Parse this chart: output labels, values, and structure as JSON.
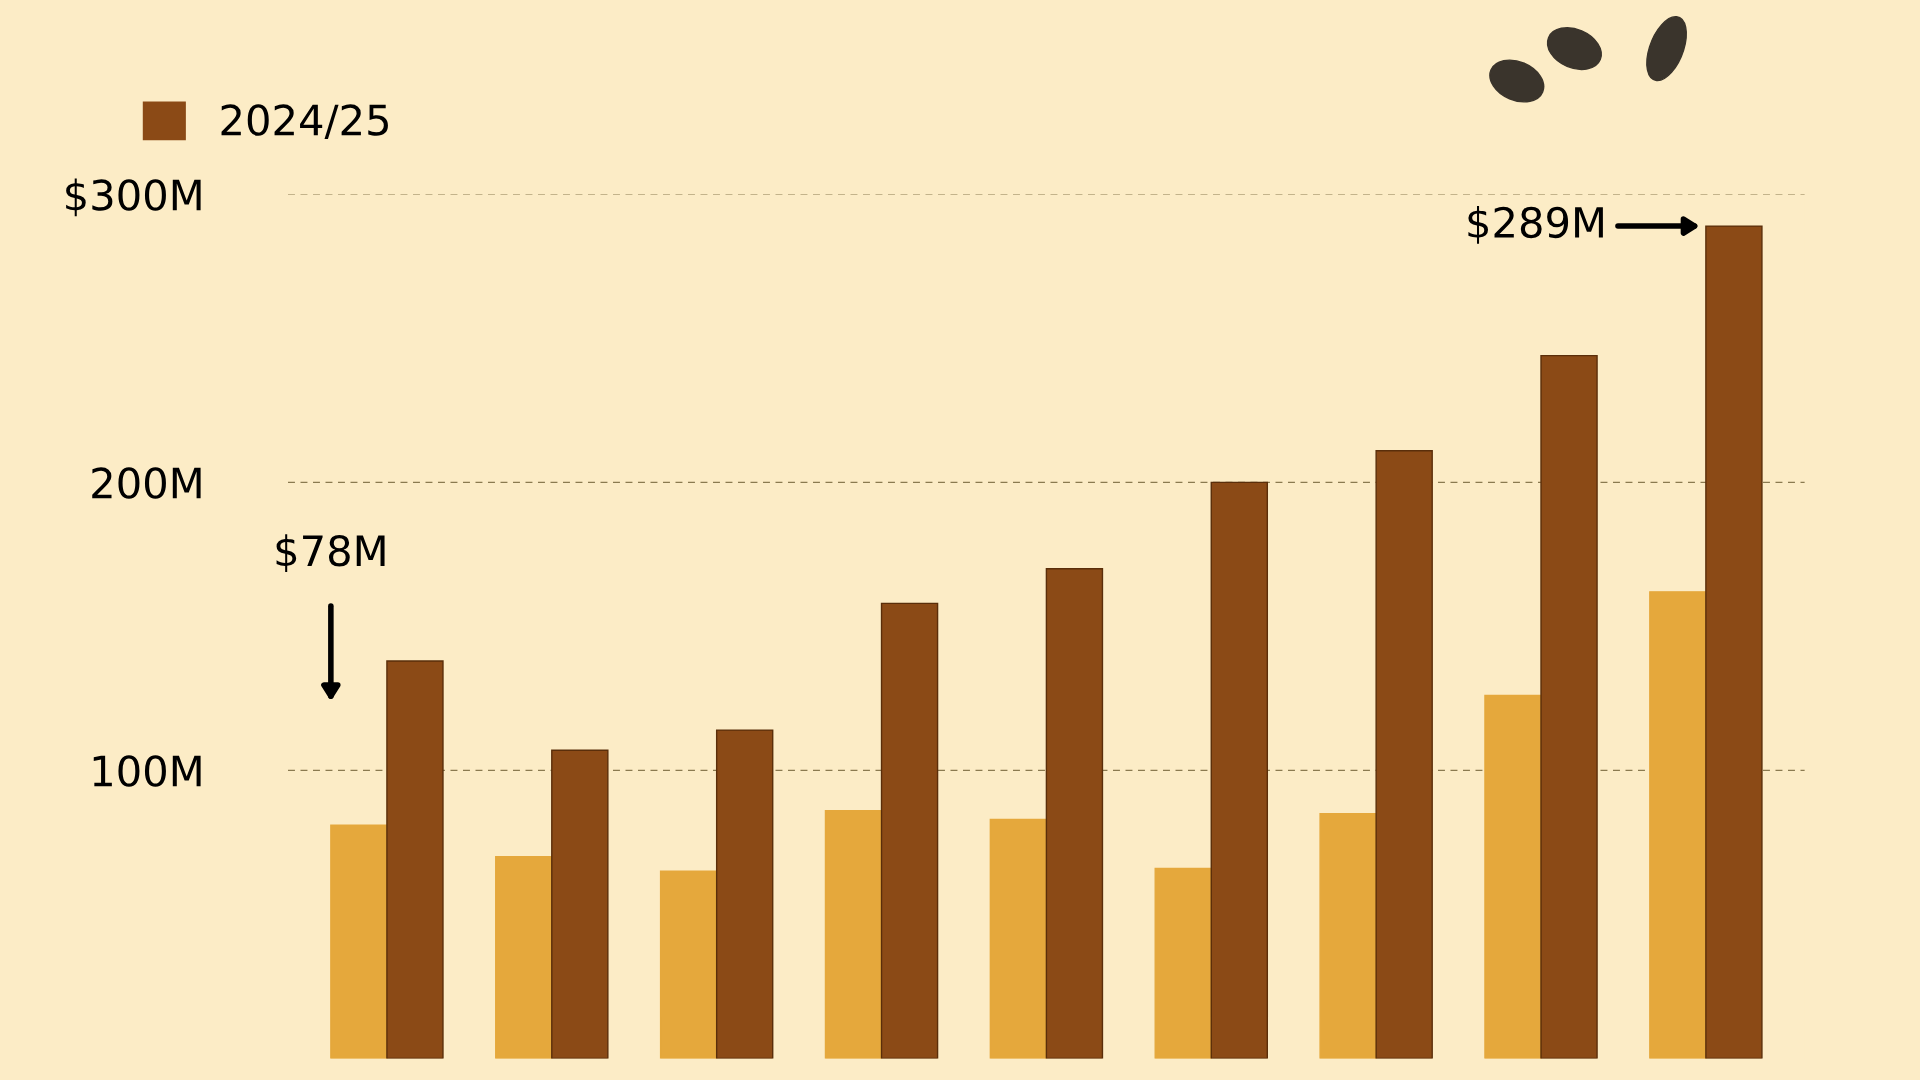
{
  "chart_data": {
    "type": "bar",
    "categories": [
      null,
      null,
      null,
      null,
      null,
      null,
      null,
      null,
      null
    ],
    "series": [
      {
        "color": "#e5a83c",
        "values": [
          81,
          70,
          65,
          86,
          83,
          66,
          85,
          126,
          162
        ]
      },
      {
        "name": "2024/25",
        "color": "#8b4a16",
        "values": [
          138,
          107,
          114,
          158,
          170,
          200,
          211,
          244,
          289
        ]
      }
    ],
    "ylim": [
      0,
      300
    ],
    "yticks": [
      {
        "value": 100,
        "label": "100M"
      },
      {
        "value": 200,
        "label": "200M"
      },
      {
        "value": 300,
        "label": "$300M"
      }
    ],
    "grid": "y",
    "legend": "top left",
    "tick_labels": "y",
    "annotations": [
      "$78M",
      "$289M"
    ]
  }
}
